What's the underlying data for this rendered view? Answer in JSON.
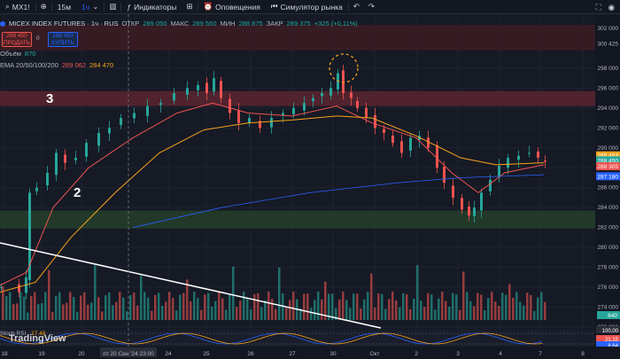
{
  "toolbar": {
    "symbol": "MX1!",
    "interval_selected": "15м",
    "interval_active": "1ч",
    "indicators_label": "Индикаторы",
    "alerts_label": "Оповещения",
    "replay_label": "Симулятор рынка"
  },
  "header": {
    "title": "MICEX INDEX FUTURES · 1ч · RUS",
    "open_label": "ОТКР",
    "open_value": "289 050",
    "high_label": "МАКС",
    "high_value": "289 550",
    "low_label": "МИН",
    "low_value": "288 875",
    "close_label": "ЗАКР",
    "close_value": "289 375",
    "change_value": "+325 (+0,11%)"
  },
  "trade": {
    "sell_price": "288 450",
    "sell_label": "ПРОДАТЬ",
    "buy_price": "288 450",
    "buy_label": "КУПИТЬ",
    "spread": "0"
  },
  "volume": {
    "label": "Объём",
    "value": "870"
  },
  "ema": {
    "label": "EMA 20/50/100/200",
    "v1": "289 062",
    "v2": "284 470"
  },
  "annotations": {
    "zone_upper": "3",
    "zone_lower": "2"
  },
  "rsi": {
    "label": "Stoch RSI",
    "v1": "17.48"
  },
  "branding": {
    "logo_text": "TradingView"
  },
  "price_axis": {
    "ticks": [
      "302 000",
      "300 425",
      "298 000",
      "296 000",
      "294 000",
      "292 000",
      "290 000",
      "288 000",
      "286 000",
      "284 000",
      "282 000",
      "280 000",
      "278 000",
      "276 000",
      "274 000",
      "272 000"
    ],
    "last_labels": [
      {
        "text": "288 493",
        "color": "#f7a21b"
      },
      {
        "text": "288 450",
        "color": "#26a69a"
      },
      {
        "text": "288 305",
        "color": "#ef5350"
      },
      {
        "text": "287 180",
        "color": "#2962ff"
      }
    ],
    "volume_label": "640",
    "rsi_labels": [
      "100,00",
      "21,15",
      "8,64"
    ]
  },
  "time_axis": {
    "ticks": [
      "18",
      "19",
      "20",
      "пт 20 Сен '24   23:00",
      "24",
      "25",
      "26",
      "27",
      "30",
      "Окт",
      "2",
      "3",
      "4",
      "7",
      "8"
    ]
  },
  "colors": {
    "background": "#161a25",
    "up": "#26a69a",
    "down": "#ef5350",
    "ema_fast": "#ef5350",
    "ema_slow": "#f7a21b",
    "ema_long": "#2962ff",
    "resistance_zone": "#5a2630",
    "support_zone": "#24402c"
  }
}
